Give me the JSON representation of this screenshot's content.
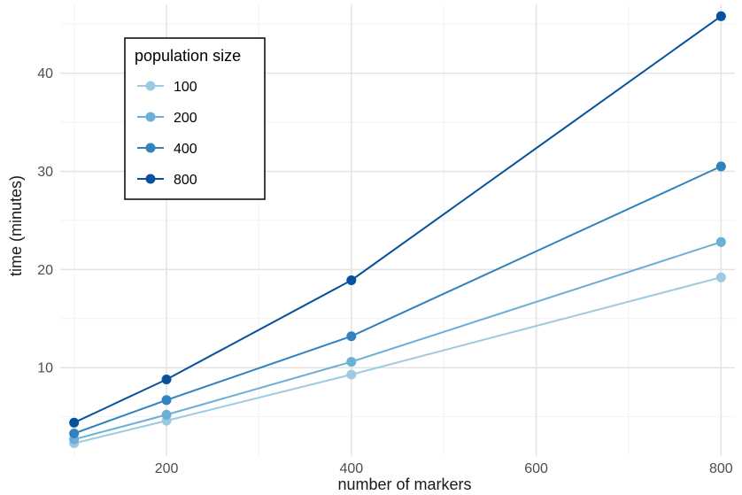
{
  "chart_data": {
    "type": "line",
    "title": "",
    "xlabel": "number of markers",
    "ylabel": "time (minutes)",
    "x": [
      100,
      200,
      400,
      800
    ],
    "xlim": [
      85,
      815
    ],
    "ylim": [
      1,
      47
    ],
    "xticks": [
      200,
      400,
      600,
      800
    ],
    "xtick_labels": [
      "200",
      "400",
      "600",
      "800"
    ],
    "yticks": [
      10,
      20,
      30,
      40
    ],
    "ytick_labels": [
      "10",
      "20",
      "30",
      "40"
    ],
    "grid": true,
    "legend": {
      "title": "population size",
      "placement": "top-left"
    },
    "series": [
      {
        "name": "100",
        "color": "#9ecae1",
        "values": [
          2.3,
          4.6,
          9.3,
          19.2
        ]
      },
      {
        "name": "200",
        "color": "#6baed6",
        "values": [
          2.7,
          5.2,
          10.6,
          22.8
        ]
      },
      {
        "name": "400",
        "color": "#3182bd",
        "values": [
          3.3,
          6.7,
          13.2,
          30.5
        ]
      },
      {
        "name": "800",
        "color": "#08519c",
        "values": [
          4.4,
          8.8,
          18.9,
          45.8
        ]
      }
    ]
  }
}
